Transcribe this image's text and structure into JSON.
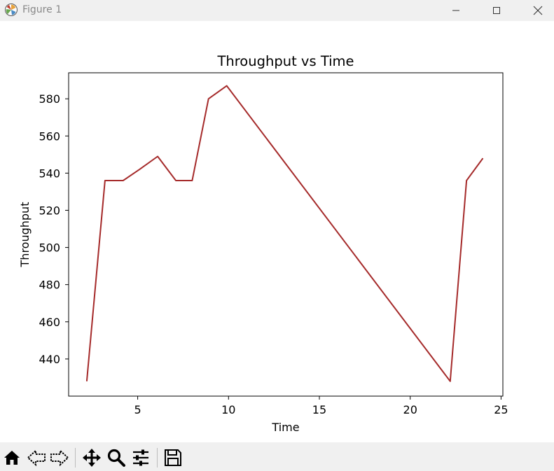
{
  "window": {
    "title": "Figure 1"
  },
  "chart_data": {
    "type": "line",
    "title": "Throughput vs Time",
    "xlabel": "Time",
    "ylabel": "Throughput",
    "xlim": [
      1.2,
      25.1
    ],
    "ylim": [
      420,
      594
    ],
    "xticks": [
      5,
      10,
      15,
      20,
      25
    ],
    "yticks": [
      440,
      460,
      480,
      500,
      520,
      540,
      560,
      580
    ],
    "grid": false,
    "series": [
      {
        "color": "#a52a2a",
        "x": [
          2.2,
          3.2,
          4.2,
          5.1,
          6.1,
          7.1,
          8.0,
          8.9,
          9.9,
          22.2,
          23.1,
          24.0
        ],
        "y": [
          428,
          536,
          536,
          542,
          549,
          536,
          536,
          580,
          587,
          428,
          536,
          548
        ]
      }
    ]
  },
  "toolbar": {
    "items": [
      {
        "icon": "home-icon"
      },
      {
        "icon": "back-icon"
      },
      {
        "icon": "forward-icon"
      },
      {
        "icon": "pan-icon"
      },
      {
        "icon": "zoom-icon"
      },
      {
        "icon": "configure-subplots-icon"
      },
      {
        "icon": "save-icon"
      }
    ]
  }
}
